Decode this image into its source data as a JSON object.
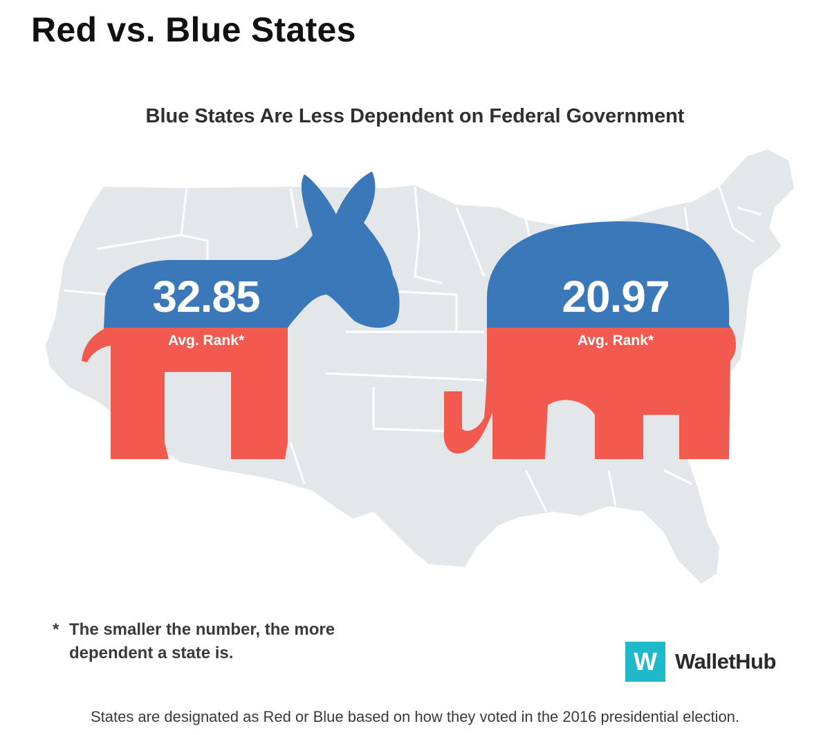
{
  "page": {
    "title": "Red vs. Blue States",
    "caption": "States are designated as Red or Blue based on how they voted in the 2016 presidential election."
  },
  "infographic": {
    "title": "Blue States Are Less Dependent on Federal Government",
    "blue_states": {
      "value": "32.85",
      "label": "Avg. Rank*",
      "icon": "donkey-icon"
    },
    "red_states": {
      "value": "20.97",
      "label": "Avg. Rank*",
      "icon": "elephant-icon"
    },
    "footnote": {
      "marker": "*",
      "line1": "The smaller the number, the more",
      "line2": "dependent a state is."
    },
    "brand": {
      "mark": "W",
      "name": "WalletHub"
    },
    "colors": {
      "blue": "#3a78b9",
      "red": "#f25a4f",
      "map": "#e4e7ea",
      "brand": "#1fb9c9"
    }
  }
}
